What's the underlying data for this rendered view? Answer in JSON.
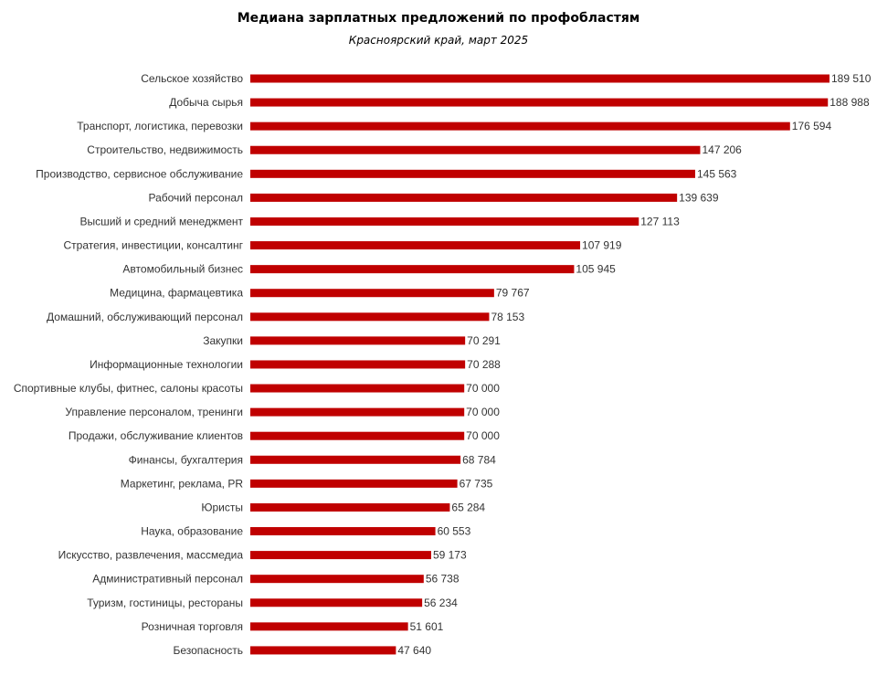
{
  "chart_data": {
    "type": "bar",
    "orientation": "horizontal",
    "title": "Медиана зарплатных предложений по профобластям",
    "subtitle": "Красноярский край, март 2025",
    "bar_color": "#C00000",
    "xlim": [
      0,
      189510
    ],
    "grid": false,
    "legend": false,
    "categories": [
      "Сельское хозяйство",
      "Добыча сырья",
      "Транспорт, логистика, перевозки",
      "Строительство, недвижимость",
      "Производство, сервисное обслуживание",
      "Рабочий персонал",
      "Высший и средний менеджмент",
      "Стратегия, инвестиции, консалтинг",
      "Автомобильный бизнес",
      "Медицина, фармацевтика",
      "Домашний, обслуживающий персонал",
      "Закупки",
      "Информационные технологии",
      "Спортивные клубы, фитнес, салоны красоты",
      "Управление персоналом, тренинги",
      "Продажи, обслуживание клиентов",
      "Финансы, бухгалтерия",
      "Маркетинг, реклама, PR",
      "Юристы",
      "Наука, образование",
      "Искусство, развлечения, массмедиа",
      "Административный персонал",
      "Туризм, гостиницы, рестораны",
      "Розничная торговля",
      "Безопасность"
    ],
    "values": [
      189510,
      188988,
      176594,
      147206,
      145563,
      139639,
      127113,
      107919,
      105945,
      79767,
      78153,
      70291,
      70288,
      70000,
      70000,
      70000,
      68784,
      67735,
      65284,
      60553,
      59173,
      56738,
      56234,
      51601,
      47640
    ],
    "value_labels": [
      "189 510",
      "188 988",
      "176 594",
      "147 206",
      "145 563",
      "139 639",
      "127 113",
      "107 919",
      "105 945",
      "79 767",
      "78 153",
      "70 291",
      "70 288",
      "70 000",
      "70 000",
      "70 000",
      "68 784",
      "67 735",
      "65 284",
      "60 553",
      "59 173",
      "56 738",
      "56 234",
      "51 601",
      "47 640"
    ]
  }
}
